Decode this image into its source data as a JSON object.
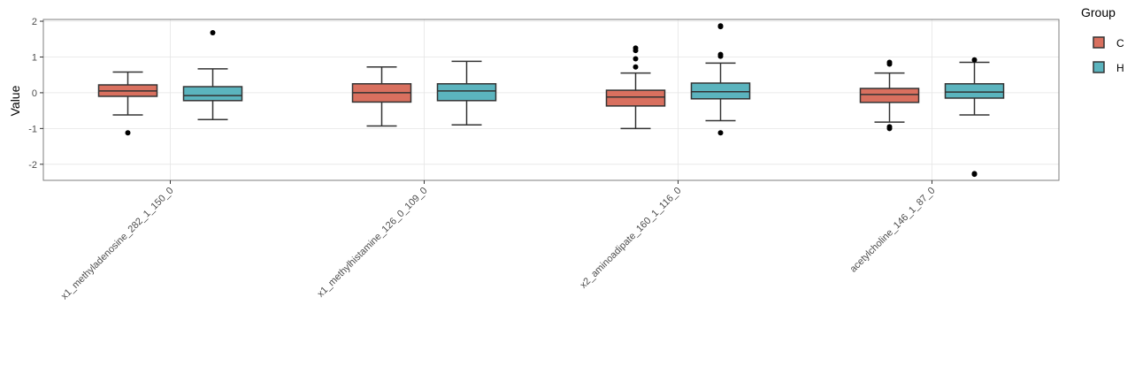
{
  "chart_data": {
    "type": "box",
    "title": "",
    "xlabel": "",
    "ylabel": "Value",
    "ylim": [
      -2.45,
      2.05
    ],
    "yticks": [
      -2,
      -1,
      0,
      1,
      2
    ],
    "ytick_labels": [
      "-2",
      "-1",
      "0",
      "1",
      "2"
    ],
    "grid": true,
    "legend": {
      "title": "Group",
      "position": "right"
    },
    "colors": {
      "C": "#D9705F",
      "H": "#5BB4BE"
    },
    "categories": [
      "x1_methyladenosine_282_1_150_0",
      "x1_methylhistamine_126_0_109_0",
      "x2_aminoadipate_160_1_116_0",
      "acetylcholine_146_1_87_0"
    ],
    "series": [
      {
        "name": "C",
        "color": "#D9705F",
        "boxes": [
          {
            "whisker_low": -0.62,
            "q1": -0.1,
            "median": 0.05,
            "q3": 0.22,
            "whisker_high": 0.58,
            "outliers": [
              -1.12
            ]
          },
          {
            "whisker_low": -0.93,
            "q1": -0.26,
            "median": 0.0,
            "q3": 0.25,
            "whisker_high": 0.72,
            "outliers": []
          },
          {
            "whisker_low": -1.0,
            "q1": -0.37,
            "median": -0.12,
            "q3": 0.07,
            "whisker_high": 0.55,
            "outliers": [
              0.72,
              0.95,
              1.18,
              1.25
            ]
          },
          {
            "whisker_low": -0.82,
            "q1": -0.27,
            "median": -0.05,
            "q3": 0.12,
            "whisker_high": 0.55,
            "outliers": [
              -0.95,
              -1.0,
              0.8,
              0.85
            ]
          }
        ]
      },
      {
        "name": "H",
        "color": "#5BB4BE",
        "boxes": [
          {
            "whisker_low": -0.75,
            "q1": -0.22,
            "median": -0.08,
            "q3": 0.17,
            "whisker_high": 0.67,
            "outliers": [
              1.68
            ]
          },
          {
            "whisker_low": -0.9,
            "q1": -0.22,
            "median": 0.05,
            "q3": 0.25,
            "whisker_high": 0.88,
            "outliers": []
          },
          {
            "whisker_low": -0.78,
            "q1": -0.17,
            "median": 0.03,
            "q3": 0.27,
            "whisker_high": 0.83,
            "outliers": [
              -1.12,
              1.02,
              1.07,
              1.85,
              1.87
            ]
          },
          {
            "whisker_low": -0.62,
            "q1": -0.15,
            "median": 0.02,
            "q3": 0.25,
            "whisker_high": 0.85,
            "outliers": [
              0.92,
              -2.26,
              -2.28
            ]
          }
        ]
      }
    ]
  }
}
